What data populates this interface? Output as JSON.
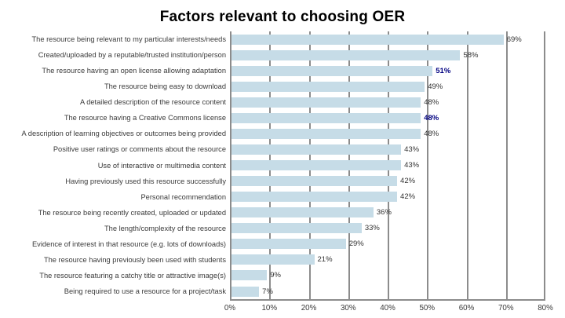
{
  "title": "Factors relevant to choosing OER",
  "chart_data": {
    "type": "bar",
    "orientation": "horizontal",
    "title": "Factors relevant to choosing OER",
    "categories": [
      "The resource being relevant to my particular interests/needs",
      "Created/uploaded by a reputable/trusted institution/person",
      "The resource having an open license allowing adaptation",
      "The resource being easy to download",
      "A detailed description of the resource content",
      "The resource having a Creative Commons license",
      "A description of learning objectives or outcomes being provided",
      "Positive user ratings or comments about the resource",
      "Use of interactive or multimedia content",
      "Having previously used this resource successfully",
      "Personal recommendation",
      "The resource being recently created, uploaded or updated",
      "The length/complexity of the resource",
      "Evidence of interest in that resource (e.g. lots of downloads)",
      "The resource having previously been used with students",
      "The resource featuring a catchy title or attractive image(s)",
      "Being required to use a resource for a project/task"
    ],
    "values": [
      69,
      58,
      51,
      49,
      48,
      48,
      48,
      43,
      43,
      42,
      42,
      36,
      33,
      29,
      21,
      9,
      7
    ],
    "value_labels": [
      "69%",
      "58%",
      "51%",
      "49%",
      "48%",
      "48%",
      "48%",
      "43%",
      "43%",
      "42%",
      "42%",
      "36%",
      "33%",
      "29%",
      "21%",
      "9%",
      "7%"
    ],
    "highlighted_indices": [
      2,
      5
    ],
    "xlim": [
      0,
      80
    ],
    "x_ticks": [
      "0%",
      "10%",
      "20%",
      "30%",
      "40%",
      "50%",
      "60%",
      "70%",
      "80%"
    ],
    "grid": true,
    "legend": null,
    "colors": {
      "bar": "#C6DCE7",
      "grid": "#8c8c8c",
      "value_label": "#333333",
      "highlight_label": "#000080",
      "category_label": "#3a3a3a"
    }
  }
}
